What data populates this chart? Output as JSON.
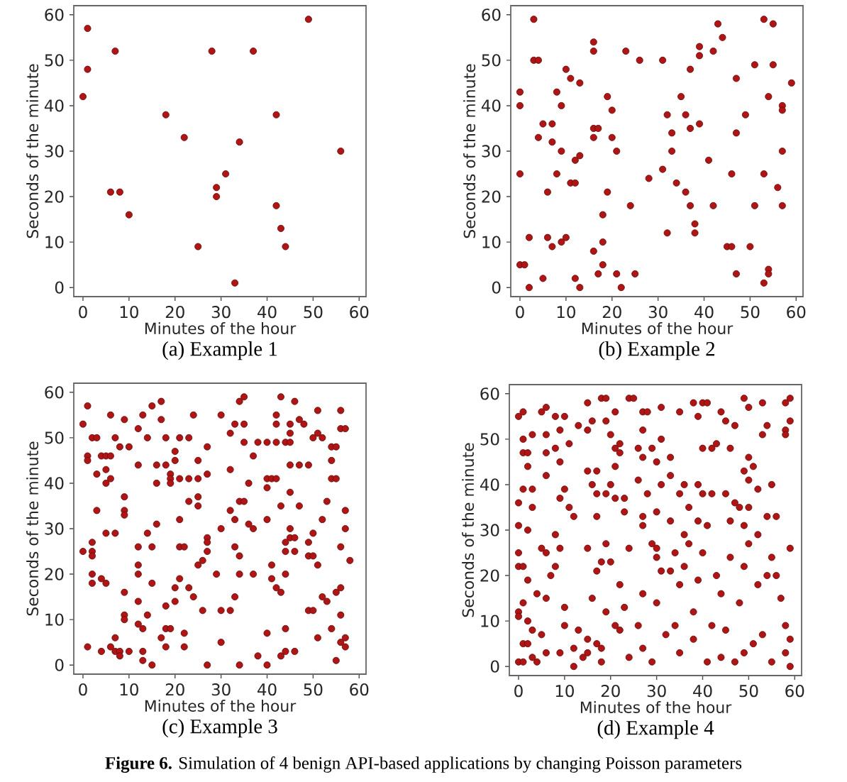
{
  "chart_data": [
    {
      "type": "scatter",
      "title": "(a) Example 1",
      "xlabel": "Minutes of the hour",
      "ylabel": "Seconds of the minute",
      "color": "#b01515",
      "marker": "circle",
      "xlim": [
        -2,
        61.5
      ],
      "ylim": [
        -2,
        62
      ],
      "xticks": [
        0,
        10,
        20,
        30,
        40,
        50,
        60
      ],
      "yticks": [
        0,
        10,
        20,
        30,
        40,
        50,
        60
      ],
      "x": [
        0,
        1,
        1,
        7,
        6,
        8,
        10,
        18,
        22,
        25,
        28,
        29,
        29,
        31,
        33,
        34,
        37,
        42,
        42,
        43,
        44,
        49,
        56
      ],
      "values": [
        42,
        57,
        48,
        52,
        21,
        21,
        16,
        38,
        33,
        9,
        52,
        22,
        20,
        25,
        1,
        32,
        52,
        38,
        18,
        13,
        9,
        59,
        30
      ]
    },
    {
      "type": "scatter",
      "title": "(b) Example 2",
      "xlabel": "Minutes of the hour",
      "ylabel": "Seconds of the minute",
      "color": "#b01515",
      "marker": "circle",
      "xlim": [
        -2,
        61.5
      ],
      "ylim": [
        -2,
        62
      ],
      "xticks": [
        0,
        10,
        20,
        30,
        40,
        50,
        60
      ],
      "yticks": [
        0,
        10,
        20,
        30,
        40,
        50,
        60
      ],
      "x": [
        0,
        0,
        0,
        0,
        1,
        2,
        2,
        3,
        3,
        4,
        4,
        5,
        5,
        6,
        6,
        7,
        7,
        7,
        8,
        8,
        9,
        9,
        9,
        10,
        10,
        11,
        11,
        12,
        12,
        12,
        13,
        13,
        13,
        16,
        16,
        16,
        16,
        16,
        17,
        17,
        18,
        18,
        18,
        19,
        19,
        20,
        20,
        21,
        21,
        22,
        23,
        24,
        25,
        26,
        28,
        31,
        31,
        32,
        32,
        33,
        33,
        34,
        35,
        36,
        36,
        37,
        37,
        37,
        38,
        38,
        39,
        39,
        39,
        41,
        42,
        42,
        43,
        44,
        45,
        46,
        46,
        47,
        47,
        47,
        49,
        50,
        51,
        51,
        53,
        53,
        53,
        54,
        54,
        54,
        55,
        55,
        56,
        57,
        57,
        57,
        57,
        59
      ],
      "values": [
        43,
        40,
        25,
        5,
        5,
        11,
        0,
        59,
        50,
        50,
        33,
        36,
        2,
        21,
        11,
        36,
        32,
        9,
        43,
        25,
        40,
        30,
        10,
        48,
        11,
        46,
        23,
        23,
        28,
        2,
        45,
        29,
        0,
        54,
        52,
        35,
        33,
        8,
        35,
        3,
        16,
        10,
        5,
        42,
        21,
        39,
        33,
        30,
        3,
        0,
        52,
        18,
        3,
        50,
        24,
        50,
        26,
        38,
        12,
        34,
        30,
        23,
        42,
        38,
        21,
        48,
        35,
        18,
        14,
        12,
        53,
        51,
        36,
        28,
        52,
        18,
        58,
        55,
        9,
        9,
        25,
        46,
        34,
        3,
        38,
        9,
        49,
        18,
        59,
        25,
        1,
        42,
        4,
        3,
        58,
        49,
        22,
        40,
        39,
        30,
        18,
        45
      ]
    },
    {
      "type": "scatter",
      "title": "(c) Example 3",
      "xlabel": "Minutes of the hour",
      "ylabel": "Seconds of the minute",
      "color": "#b01515",
      "marker": "circle",
      "xlim": [
        -2,
        61.5
      ],
      "ylim": [
        -2,
        62
      ],
      "xticks": [
        0,
        10,
        20,
        30,
        40,
        50,
        60
      ],
      "yticks": [
        0,
        10,
        20,
        30,
        40,
        50,
        60
      ],
      "x": [
        0,
        0,
        1,
        1,
        1,
        1,
        2,
        2,
        2,
        2,
        2,
        2,
        3,
        3,
        3,
        4,
        4,
        4,
        5,
        5,
        5,
        5,
        5,
        6,
        6,
        6,
        6,
        7,
        7,
        7,
        7,
        8,
        8,
        8,
        9,
        9,
        9,
        9,
        9,
        9,
        9,
        10,
        10,
        12,
        12,
        12,
        12,
        12,
        12,
        12,
        13,
        13,
        13,
        13,
        14,
        14,
        14,
        15,
        15,
        15,
        15,
        16,
        16,
        16,
        17,
        17,
        17,
        18,
        18,
        18,
        18,
        18,
        19,
        19,
        19,
        19,
        20,
        20,
        20,
        20,
        21,
        21,
        21,
        21,
        21,
        22,
        22,
        22,
        23,
        23,
        23,
        23,
        24,
        24,
        25,
        25,
        25,
        25,
        25,
        26,
        26,
        27,
        27,
        27,
        27,
        27,
        27,
        29,
        30,
        30,
        30,
        30,
        32,
        32,
        32,
        32,
        33,
        33,
        33,
        33,
        34,
        34,
        34,
        34,
        34,
        35,
        35,
        35,
        35,
        36,
        36,
        37,
        37,
        37,
        38,
        38,
        40,
        40,
        40,
        40,
        40,
        40,
        41,
        41,
        41,
        42,
        42,
        42,
        42,
        42,
        43,
        43,
        43,
        43,
        44,
        44,
        44,
        44,
        44,
        44,
        45,
        45,
        45,
        45,
        45,
        45,
        45,
        46,
        46,
        46,
        46,
        47,
        47,
        47,
        48,
        49,
        49,
        49,
        49,
        50,
        50,
        50,
        50,
        51,
        51,
        51,
        51,
        52,
        52,
        52,
        53,
        53,
        54,
        54,
        54,
        54,
        55,
        55,
        55,
        55,
        56,
        56,
        56,
        56,
        56,
        56,
        57,
        57,
        57,
        57,
        57,
        58
      ],
      "values": [
        53,
        25,
        57,
        46,
        45,
        4,
        50,
        27,
        25,
        24,
        20,
        18,
        50,
        42,
        34,
        46,
        19,
        3,
        46,
        43,
        40,
        29,
        18,
        55,
        46,
        41,
        4,
        50,
        29,
        6,
        3,
        48,
        3,
        2,
        54,
        37,
        34,
        33,
        16,
        11,
        10,
        48,
        3,
        52,
        44,
        26,
        22,
        20,
        14,
        9,
        55,
        8,
        3,
        1,
        50,
        29,
        11,
        57,
        26,
        18,
        0,
        44,
        40,
        31,
        58,
        54,
        6,
        50,
        44,
        13,
        8,
        4,
        42,
        41,
        40,
        8,
        47,
        45,
        17,
        14,
        50,
        41,
        32,
        26,
        19,
        26,
        7,
        4,
        50,
        41,
        36,
        17,
        55,
        15,
        45,
        41,
        37,
        35,
        22,
        23,
        12,
        48,
        42,
        28,
        27,
        25,
        0,
        20,
        55,
        30,
        12,
        5,
        51,
        43,
        34,
        12,
        53,
        32,
        26,
        15,
        58,
        36,
        24,
        20,
        0,
        59,
        53,
        49,
        36,
        40,
        31,
        46,
        30,
        20,
        49,
        2,
        49,
        41,
        39,
        32,
        7,
        0,
        41,
        22,
        19,
        55,
        53,
        49,
        41,
        17,
        59,
        35,
        16,
        2,
        49,
        27,
        25,
        20,
        8,
        3,
        53,
        51,
        49,
        44,
        38,
        30,
        28,
        58,
        28,
        25,
        3,
        54,
        44,
        35,
        53,
        44,
        27,
        24,
        12,
        50,
        29,
        24,
        12,
        56,
        51,
        22,
        6,
        50,
        32,
        15,
        36,
        14,
        48,
        45,
        41,
        8,
        48,
        41,
        16,
        1,
        56,
        52,
        26,
        17,
        11,
        5,
        52,
        34,
        30,
        6,
        4,
        23
      ]
    },
    {
      "type": "scatter",
      "title": "(d) Example 4",
      "xlabel": "Minutes of the hour",
      "ylabel": "Seconds of the minute",
      "color": "#b01515",
      "marker": "circle",
      "xlim": [
        -2,
        61.5
      ],
      "ylim": [
        -2,
        62
      ],
      "xticks": [
        0,
        10,
        20,
        30,
        40,
        50,
        60
      ],
      "yticks": [
        0,
        10,
        20,
        30,
        40,
        50,
        60
      ],
      "annotations": [
        "**Figure 6.** Simulation of 4 benign API-based applications by changing Poisson parameters"
      ],
      "x": [
        0,
        1,
        1,
        1,
        2,
        2,
        1,
        3,
        0,
        3,
        0,
        2,
        3,
        5,
        6,
        8,
        10,
        6,
        9,
        11,
        8,
        6,
        9,
        6,
        10,
        9,
        11,
        12,
        8,
        13,
        15,
        15,
        16,
        15,
        17,
        16,
        17,
        19,
        17,
        18,
        19,
        19,
        20,
        21,
        21,
        22,
        22,
        21,
        20,
        21,
        23,
        24,
        25,
        23,
        27,
        28,
        27,
        26,
        29,
        27,
        30,
        26,
        28,
        27,
        30,
        27,
        31,
        31,
        35,
        33,
        33,
        31,
        36,
        35,
        37,
        33,
        36,
        38,
        40,
        41,
        39,
        40,
        42,
        43,
        39,
        40,
        42,
        39,
        41,
        44,
        45,
        47,
        49,
        50,
        53,
        46,
        50,
        49,
        51,
        50,
        45,
        47,
        48,
        50,
        52,
        55,
        46,
        49,
        52,
        54,
        56,
        58,
        59,
        58,
        59,
        58,
        54,
        53,
        0,
        0,
        1,
        0,
        0,
        1,
        2,
        2,
        1,
        2,
        0,
        1,
        3,
        4,
        3,
        4,
        5,
        6,
        6,
        5,
        6,
        7,
        8,
        9,
        9,
        10,
        10,
        12,
        12,
        13,
        14,
        15,
        15,
        16,
        17,
        17,
        18,
        18,
        19,
        19,
        20,
        21,
        22,
        23,
        24,
        24,
        26,
        27,
        27,
        29,
        30,
        30,
        30,
        31,
        32,
        33,
        34,
        35,
        35,
        36,
        37,
        38,
        38,
        39,
        40,
        41,
        42,
        43,
        44,
        44,
        45,
        46,
        47,
        48,
        49,
        50,
        51,
        52,
        53,
        54,
        55,
        56,
        57,
        58,
        58,
        59,
        59,
        59,
        15,
        18,
        22,
        29,
        34,
        49,
        55
      ],
      "values": [
        55,
        56,
        50,
        47,
        47,
        44,
        39,
        39,
        36,
        35,
        31,
        30,
        51,
        56,
        57,
        55,
        55,
        51,
        52,
        49,
        48,
        47,
        45,
        42,
        39,
        37,
        35,
        33,
        29,
        53,
        58,
        52,
        54,
        43,
        43,
        40,
        38,
        38,
        33,
        59,
        59,
        54,
        51,
        56,
        48,
        49,
        47,
        44,
        40,
        37,
        34,
        59,
        59,
        37,
        56,
        56,
        52,
        48,
        48,
        46,
        45,
        41,
        38,
        33,
        34,
        31,
        57,
        50,
        56,
        46,
        42,
        40,
        40,
        38,
        35,
        32,
        29,
        58,
        58,
        58,
        55,
        48,
        48,
        49,
        40,
        38,
        38,
        32,
        31,
        56,
        54,
        53,
        59,
        57,
        58,
        48,
        46,
        43,
        44,
        41,
        38,
        36,
        35,
        35,
        39,
        40,
        32,
        31,
        29,
        33,
        33,
        58,
        59,
        52,
        54,
        51,
        53,
        51,
        25,
        22,
        22,
        12,
        11,
        14,
        19,
        10,
        5,
        5,
        1,
        1,
        2,
        1,
        8,
        16,
        26,
        25,
        3,
        7,
        15,
        20,
        22,
        26,
        3,
        13,
        9,
        4,
        0,
        8,
        2,
        26,
        3,
        15,
        21,
        5,
        1,
        23,
        27,
        12,
        23,
        9,
        8,
        13,
        26,
        2,
        9,
        16,
        4,
        1,
        26,
        24,
        14,
        21,
        7,
        21,
        25,
        18,
        3,
        22,
        27,
        12,
        6,
        19,
        25,
        1,
        9,
        20,
        16,
        2,
        8,
        24,
        1,
        14,
        3,
        27,
        5,
        18,
        7,
        20,
        24,
        20,
        15,
        3,
        9,
        26,
        6,
        0,
        6,
        4,
        18,
        27,
        9,
        22,
        1
      ]
    }
  ]
}
